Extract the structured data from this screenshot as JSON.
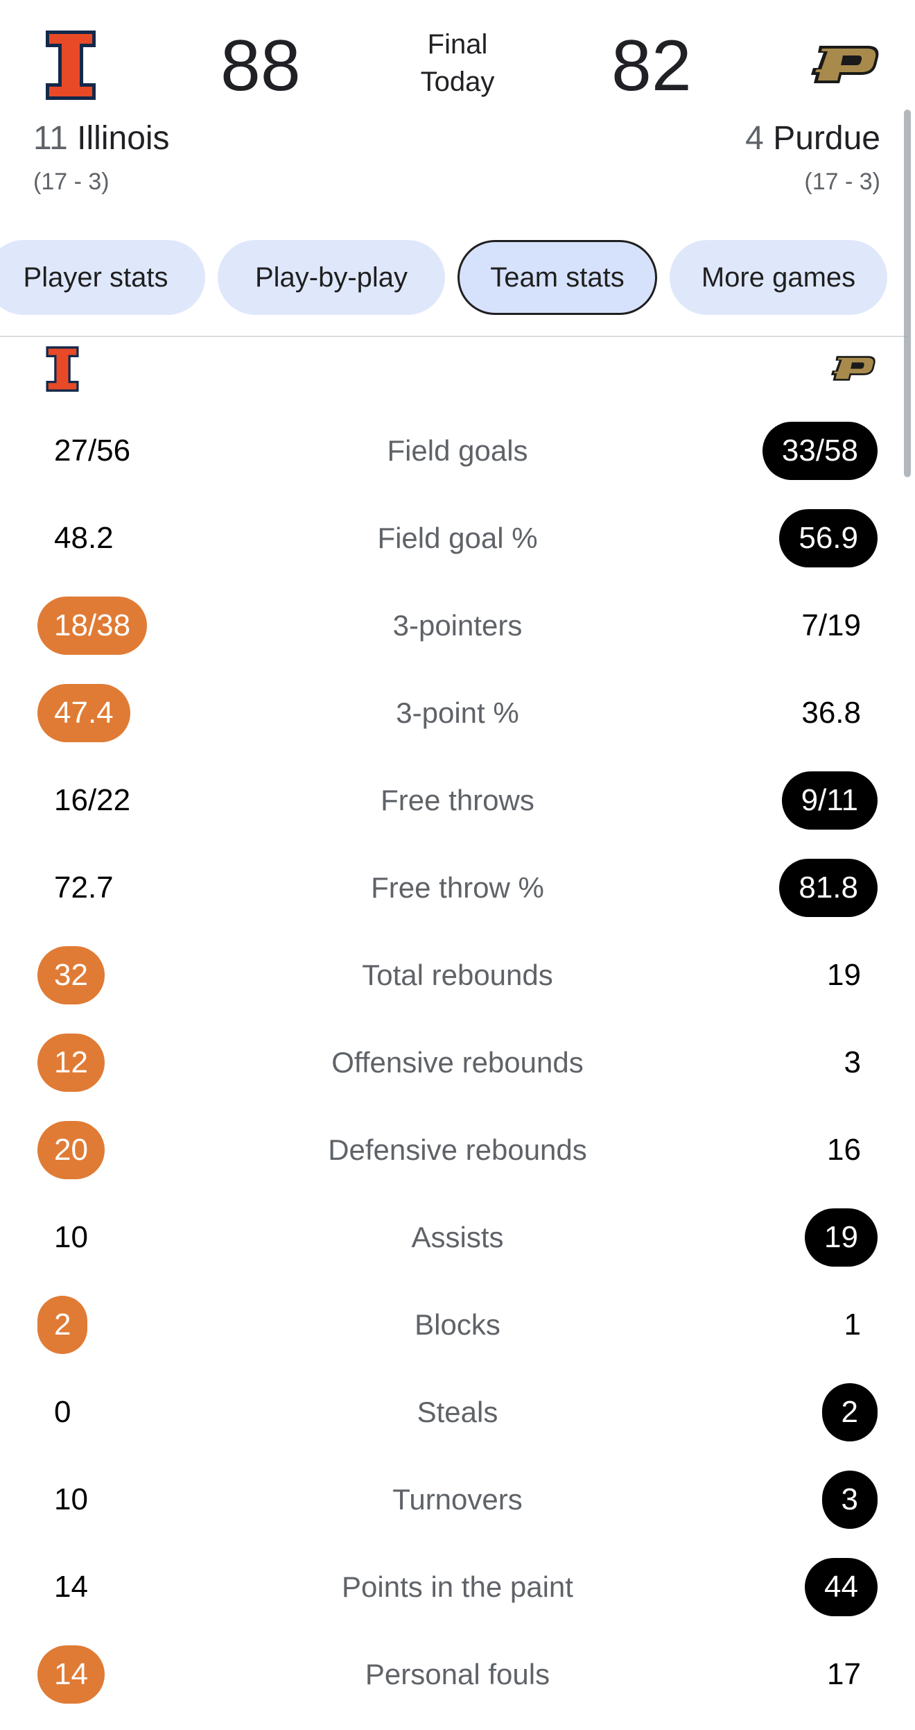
{
  "header": {
    "home": {
      "score": "88",
      "rank": "11",
      "name": "Illinois",
      "record": "(17 - 3)"
    },
    "away": {
      "score": "82",
      "rank": "4",
      "name": "Purdue",
      "record": "(17 - 3)"
    },
    "status_line1": "Final",
    "status_line2": "Today"
  },
  "tabs": [
    {
      "label": "Player stats"
    },
    {
      "label": "Play-by-play"
    },
    {
      "label": "Team stats"
    },
    {
      "label": "More games"
    }
  ],
  "colors": {
    "illinois": "#e07b35",
    "purdue": "#000000",
    "chip_bg": "#dfe8fb"
  },
  "stats": [
    {
      "label": "Field goals",
      "left": "27/56",
      "right": "33/58",
      "winner": "right"
    },
    {
      "label": "Field goal %",
      "left": "48.2",
      "right": "56.9",
      "winner": "right"
    },
    {
      "label": "3-pointers",
      "left": "18/38",
      "right": "7/19",
      "winner": "left"
    },
    {
      "label": "3-point %",
      "left": "47.4",
      "right": "36.8",
      "winner": "left"
    },
    {
      "label": "Free throws",
      "left": "16/22",
      "right": "9/11",
      "winner": "right"
    },
    {
      "label": "Free throw %",
      "left": "72.7",
      "right": "81.8",
      "winner": "right"
    },
    {
      "label": "Total rebounds",
      "left": "32",
      "right": "19",
      "winner": "left"
    },
    {
      "label": "Offensive rebounds",
      "left": "12",
      "right": "3",
      "winner": "left"
    },
    {
      "label": "Defensive rebounds",
      "left": "20",
      "right": "16",
      "winner": "left"
    },
    {
      "label": "Assists",
      "left": "10",
      "right": "19",
      "winner": "right"
    },
    {
      "label": "Blocks",
      "left": "2",
      "right": "1",
      "winner": "left"
    },
    {
      "label": "Steals",
      "left": "0",
      "right": "2",
      "winner": "right"
    },
    {
      "label": "Turnovers",
      "left": "10",
      "right": "3",
      "winner": "right"
    },
    {
      "label": "Points in the paint",
      "left": "14",
      "right": "44",
      "winner": "right"
    },
    {
      "label": "Personal fouls",
      "left": "14",
      "right": "17",
      "winner": "left"
    }
  ]
}
